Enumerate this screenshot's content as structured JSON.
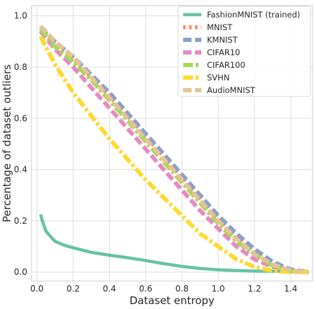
{
  "chart_data": {
    "type": "line",
    "title": "",
    "xlabel": "Dataset entropy",
    "ylabel": "Percentage of dataset outliers",
    "xlim": [
      -0.03,
      1.52
    ],
    "ylim": [
      -0.035,
      1.04
    ],
    "xticks": [
      0.0,
      0.2,
      0.4,
      0.6,
      0.8,
      1.0,
      1.2,
      1.4
    ],
    "xtick_labels": [
      "0.0",
      "0.2",
      "0.4",
      "0.6",
      "0.8",
      "1.0",
      "1.2",
      "1.4"
    ],
    "yticks": [
      0.0,
      0.2,
      0.4,
      0.6,
      0.8,
      1.0
    ],
    "ytick_labels": [
      "0.0",
      "0.2",
      "0.4",
      "0.6",
      "0.8",
      "1.0"
    ],
    "grid": true,
    "legend_position": "top-right",
    "series": [
      {
        "name": "FashionMNIST (trained)",
        "color": "#66c2a5",
        "style": "solid",
        "x": [
          0.02,
          0.03,
          0.05,
          0.08,
          0.1,
          0.15,
          0.2,
          0.3,
          0.4,
          0.5,
          0.6,
          0.7,
          0.8,
          0.9,
          1.0,
          1.1,
          1.2,
          1.3,
          1.4,
          1.5
        ],
        "y": [
          0.225,
          0.2,
          0.16,
          0.135,
          0.12,
          0.105,
          0.095,
          0.077,
          0.066,
          0.056,
          0.045,
          0.033,
          0.022,
          0.014,
          0.009,
          0.006,
          0.004,
          0.003,
          0.002,
          0.001
        ]
      },
      {
        "name": "MNIST",
        "color": "#fc8d62",
        "style": "dotted",
        "x": [
          0.02,
          0.1,
          0.2,
          0.3,
          0.4,
          0.5,
          0.6,
          0.7,
          0.8,
          0.9,
          1.0,
          1.1,
          1.2,
          1.3,
          1.4,
          1.5
        ],
        "y": [
          0.95,
          0.89,
          0.83,
          0.76,
          0.69,
          0.61,
          0.53,
          0.45,
          0.37,
          0.29,
          0.21,
          0.14,
          0.08,
          0.03,
          0.005,
          0.0
        ]
      },
      {
        "name": "KMNIST",
        "color": "#8da0cb",
        "style": "dashed",
        "x": [
          0.02,
          0.1,
          0.2,
          0.3,
          0.4,
          0.5,
          0.6,
          0.7,
          0.8,
          0.9,
          1.0,
          1.1,
          1.2,
          1.3,
          1.4,
          1.5
        ],
        "y": [
          0.95,
          0.9,
          0.84,
          0.77,
          0.7,
          0.62,
          0.54,
          0.46,
          0.38,
          0.3,
          0.22,
          0.15,
          0.09,
          0.04,
          0.01,
          0.0
        ]
      },
      {
        "name": "CIFAR10",
        "color": "#e78ac3",
        "style": "dashed",
        "x": [
          0.02,
          0.1,
          0.2,
          0.3,
          0.4,
          0.5,
          0.6,
          0.7,
          0.8,
          0.9,
          1.0,
          1.1,
          1.2,
          1.3,
          1.4,
          1.5
        ],
        "y": [
          0.94,
          0.87,
          0.8,
          0.72,
          0.64,
          0.56,
          0.48,
          0.4,
          0.32,
          0.24,
          0.17,
          0.1,
          0.05,
          0.02,
          0.003,
          0.0
        ]
      },
      {
        "name": "CIFAR100",
        "color": "#a6d854",
        "style": "dashdot",
        "x": [
          0.02,
          0.1,
          0.2,
          0.3,
          0.4,
          0.5,
          0.6,
          0.7,
          0.8,
          0.9,
          1.0,
          1.1,
          1.2,
          1.3,
          1.4,
          1.5
        ],
        "y": [
          0.95,
          0.88,
          0.82,
          0.75,
          0.67,
          0.59,
          0.51,
          0.43,
          0.35,
          0.27,
          0.19,
          0.12,
          0.07,
          0.025,
          0.004,
          0.0
        ]
      },
      {
        "name": "SVHN",
        "color": "#ffd92f",
        "style": "dashdot",
        "x": [
          0.02,
          0.1,
          0.2,
          0.3,
          0.4,
          0.5,
          0.6,
          0.7,
          0.8,
          0.9,
          1.0,
          1.1,
          1.2,
          1.3,
          1.4,
          1.5
        ],
        "y": [
          0.92,
          0.81,
          0.7,
          0.61,
          0.52,
          0.44,
          0.36,
          0.29,
          0.22,
          0.15,
          0.1,
          0.05,
          0.02,
          0.005,
          0.0,
          0.0
        ]
      },
      {
        "name": "AudioMNIST",
        "color": "#e5c494",
        "style": "dashed",
        "x": [
          0.02,
          0.1,
          0.2,
          0.3,
          0.4,
          0.5,
          0.6,
          0.7,
          0.8,
          0.9,
          1.0,
          1.1,
          1.2,
          1.3,
          1.4,
          1.5
        ],
        "y": [
          0.96,
          0.9,
          0.84,
          0.76,
          0.68,
          0.6,
          0.52,
          0.44,
          0.36,
          0.28,
          0.2,
          0.13,
          0.07,
          0.03,
          0.006,
          0.0
        ]
      }
    ]
  }
}
